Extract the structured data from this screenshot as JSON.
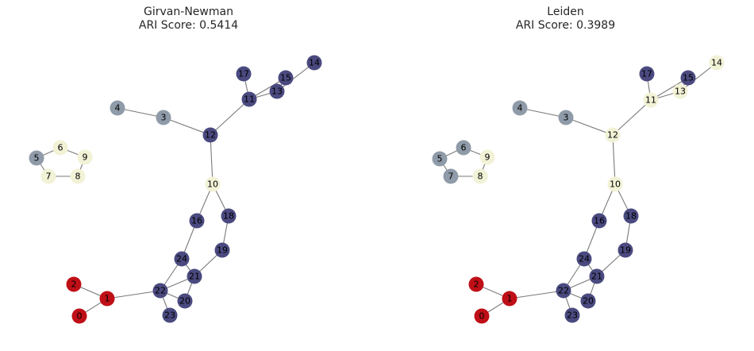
{
  "colors": {
    "community_a": "#4a4a80",
    "community_b": "#bf0f17",
    "community_c": "#8f9ba8",
    "community_d": "#f1f2d6",
    "edge": "#7a7a7a"
  },
  "edges": [
    [
      0,
      1
    ],
    [
      1,
      2
    ],
    [
      1,
      22
    ],
    [
      3,
      4
    ],
    [
      3,
      12
    ],
    [
      5,
      6
    ],
    [
      5,
      7
    ],
    [
      6,
      9
    ],
    [
      7,
      8
    ],
    [
      8,
      9
    ],
    [
      10,
      12
    ],
    [
      10,
      16
    ],
    [
      10,
      18
    ],
    [
      11,
      12
    ],
    [
      11,
      13
    ],
    [
      11,
      15
    ],
    [
      11,
      17
    ],
    [
      13,
      14
    ],
    [
      13,
      15
    ],
    [
      16,
      24
    ],
    [
      18,
      19
    ],
    [
      19,
      21
    ],
    [
      20,
      21
    ],
    [
      20,
      22
    ],
    [
      21,
      22
    ],
    [
      21,
      24
    ],
    [
      22,
      23
    ],
    [
      22,
      24
    ]
  ],
  "panels": [
    {
      "title": "Girvan-Newman",
      "subtitle": "ARI Score: 0.5414",
      "node_community": {
        "0": "b",
        "1": "b",
        "2": "b",
        "3": "c",
        "4": "c",
        "5": "c",
        "6": "d",
        "7": "d",
        "8": "d",
        "9": "d",
        "10": "d",
        "11": "a",
        "12": "a",
        "13": "a",
        "14": "a",
        "15": "a",
        "16": "a",
        "17": "a",
        "18": "a",
        "19": "a",
        "20": "a",
        "21": "a",
        "22": "a",
        "23": "a",
        "24": "a"
      }
    },
    {
      "title": "Leiden",
      "subtitle": "ARI Score: 0.3989",
      "node_community": {
        "0": "b",
        "1": "b",
        "2": "b",
        "3": "c",
        "4": "c",
        "5": "c",
        "6": "c",
        "7": "c",
        "8": "d",
        "9": "d",
        "10": "d",
        "11": "d",
        "12": "d",
        "13": "d",
        "14": "d",
        "15": "a",
        "16": "a",
        "17": "a",
        "18": "a",
        "19": "a",
        "20": "a",
        "21": "a",
        "22": "a",
        "23": "a",
        "24": "a"
      }
    }
  ]
}
